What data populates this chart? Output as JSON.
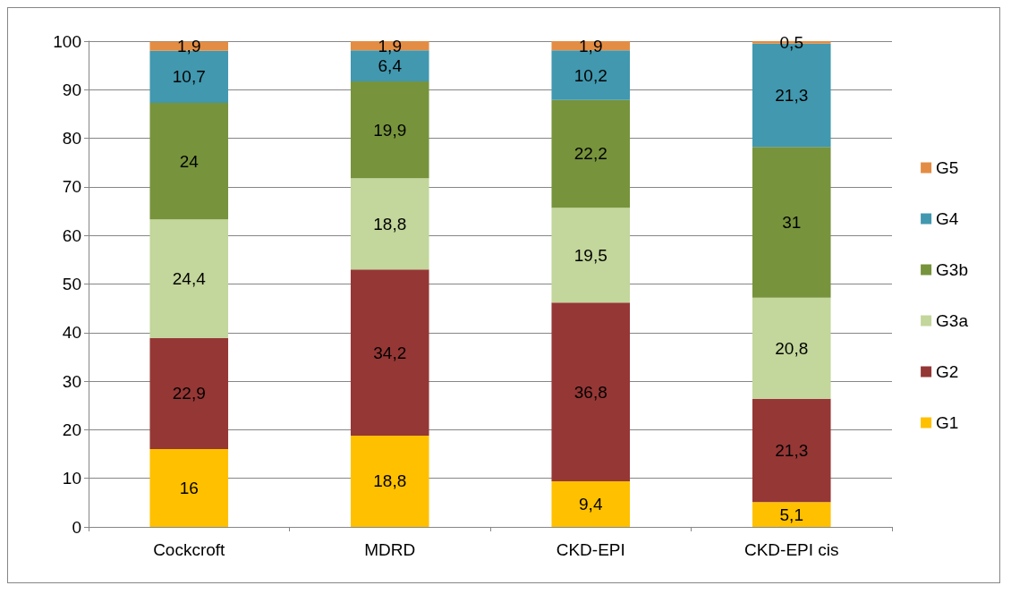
{
  "chart_data": {
    "type": "bar",
    "stacked": true,
    "categories": [
      "Cockcroft",
      "MDRD",
      "CKD-EPI",
      "CKD-EPI cis"
    ],
    "series": [
      {
        "name": "G1",
        "color": "#ffc000",
        "values": [
          16,
          18.8,
          9.4,
          5.1
        ],
        "value_labels": [
          "16",
          "18,8",
          "9,4",
          "5,1"
        ]
      },
      {
        "name": "G2",
        "color": "#953735",
        "values": [
          22.9,
          34.2,
          36.8,
          21.3
        ],
        "value_labels": [
          "22,9",
          "34,2",
          "36,8",
          "21,3"
        ]
      },
      {
        "name": "G3a",
        "color": "#c3d69b",
        "values": [
          24.4,
          18.8,
          19.5,
          20.8
        ],
        "value_labels": [
          "24,4",
          "18,8",
          "19,5",
          "20,8"
        ]
      },
      {
        "name": "G3b",
        "color": "#77933c",
        "values": [
          24,
          19.9,
          22.2,
          31
        ],
        "value_labels": [
          "24",
          "19,9",
          "22,2",
          "31"
        ]
      },
      {
        "name": "G4",
        "color": "#4198af",
        "values": [
          10.7,
          6.4,
          10.2,
          21.3
        ],
        "value_labels": [
          "10,7",
          "6,4",
          "10,2",
          "21,3"
        ]
      },
      {
        "name": "G5",
        "color": "#e38d44",
        "values": [
          1.9,
          1.9,
          1.9,
          0.5
        ],
        "value_labels": [
          "1,9",
          "1,9",
          "1,9",
          "0,5"
        ]
      }
    ],
    "ylim": [
      0,
      100
    ],
    "yticks": [
      0,
      10,
      20,
      30,
      40,
      50,
      60,
      70,
      80,
      90,
      100
    ],
    "grid": "y",
    "legend": "right"
  }
}
